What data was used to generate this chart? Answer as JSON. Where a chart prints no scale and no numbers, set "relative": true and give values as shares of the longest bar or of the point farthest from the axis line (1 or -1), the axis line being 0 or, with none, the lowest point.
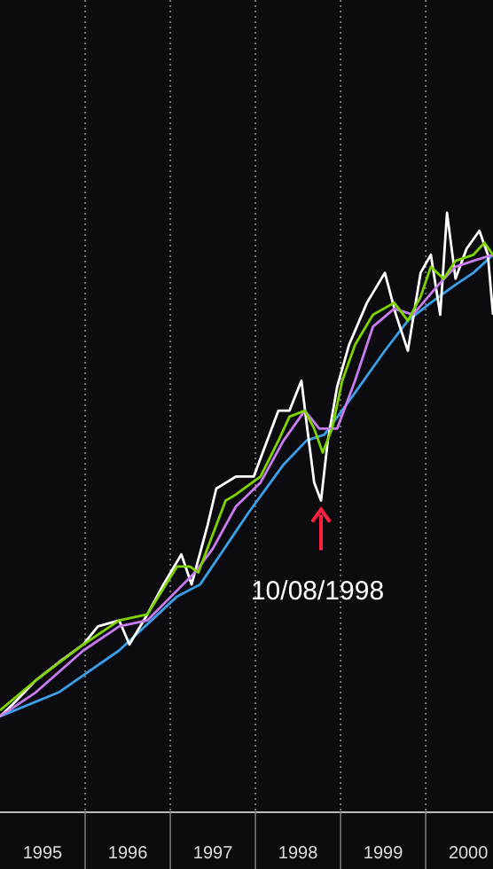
{
  "chart_data": {
    "type": "line",
    "relative": true,
    "xlim": [
      1995,
      2000.79
    ],
    "xticks": [
      {
        "value": 1995.5,
        "label": "1995"
      },
      {
        "value": 1996,
        "label": null
      },
      {
        "value": 1996.5,
        "label": "1996"
      },
      {
        "value": 1997,
        "label": null
      },
      {
        "value": 1997.5,
        "label": "1997"
      },
      {
        "value": 1998,
        "label": null
      },
      {
        "value": 1998.5,
        "label": "1998"
      },
      {
        "value": 1999,
        "label": null
      },
      {
        "value": 1999.5,
        "label": "1999"
      },
      {
        "value": 2000,
        "label": null
      },
      {
        "value": 2000.5,
        "label": "2000"
      }
    ],
    "grid": "x",
    "marker": "none",
    "line_style": "solid",
    "annotations": [
      {
        "text": "10/08/1998",
        "x": 1998.77,
        "y": 0.52
      }
    ],
    "series": [
      {
        "color": "#3ba0e8",
        "x": [
          1995,
          1995.69,
          1996.4,
          1997.08,
          1997.35,
          1997.92,
          1998.33,
          1998.6,
          1998.81,
          1999.17,
          1999.52,
          1999.79,
          2000.06,
          2000.35,
          2000.56,
          2000.79
        ],
        "values": [
          0.16,
          0.2,
          0.27,
          0.36,
          0.38,
          0.5,
          0.58,
          0.62,
          0.63,
          0.7,
          0.77,
          0.82,
          0.85,
          0.88,
          0.9,
          0.93
        ]
      },
      {
        "color": "#ffffff",
        "x": [
          1995,
          1995.15,
          1995.42,
          1995.69,
          1995.98,
          1996.15,
          1996.4,
          1996.52,
          1996.73,
          1996.92,
          1997.13,
          1997.25,
          1997.44,
          1997.54,
          1997.77,
          1997.98,
          1998.27,
          1998.4,
          1998.54,
          1998.6,
          1998.69,
          1998.77,
          1998.85,
          1998.96,
          1999.1,
          1999.31,
          1999.52,
          1999.65,
          1999.79,
          1999.94,
          2000.06,
          2000.17,
          2000.25,
          2000.35,
          2000.48,
          2000.63,
          2000.73,
          2000.79
        ],
        "values": [
          0.16,
          0.18,
          0.22,
          0.25,
          0.28,
          0.31,
          0.32,
          0.28,
          0.33,
          0.38,
          0.43,
          0.38,
          0.48,
          0.54,
          0.56,
          0.56,
          0.67,
          0.67,
          0.72,
          0.65,
          0.55,
          0.52,
          0.62,
          0.71,
          0.78,
          0.85,
          0.9,
          0.83,
          0.77,
          0.9,
          0.93,
          0.83,
          1,
          0.89,
          0.94,
          0.97,
          0.93,
          0.83
        ]
      },
      {
        "color": "#c97cf0",
        "x": [
          1995,
          1995.42,
          1995.98,
          1996.4,
          1996.73,
          1997.08,
          1997.29,
          1997.5,
          1997.77,
          1998.06,
          1998.33,
          1998.58,
          1998.75,
          1998.96,
          1999.17,
          1999.38,
          1999.63,
          1999.85,
          2000.15,
          2000.35,
          2000.56,
          2000.79
        ],
        "values": [
          0.16,
          0.2,
          0.27,
          0.31,
          0.32,
          0.37,
          0.4,
          0.44,
          0.51,
          0.55,
          0.62,
          0.67,
          0.64,
          0.64,
          0.72,
          0.81,
          0.84,
          0.83,
          0.88,
          0.91,
          0.92,
          0.93
        ]
      },
      {
        "color": "#7fd400",
        "x": [
          1995,
          1995.42,
          1995.98,
          1996.4,
          1996.73,
          1997.08,
          1997.23,
          1997.33,
          1997.65,
          1997.77,
          1998.06,
          1998.27,
          1998.4,
          1998.58,
          1998.69,
          1998.79,
          1998.9,
          1999.02,
          1999.17,
          1999.38,
          1999.63,
          1999.79,
          1999.94,
          2000.06,
          2000.21,
          2000.35,
          2000.56,
          2000.69,
          2000.79
        ],
        "values": [
          0.17,
          0.22,
          0.28,
          0.32,
          0.33,
          0.41,
          0.41,
          0.4,
          0.52,
          0.53,
          0.56,
          0.62,
          0.66,
          0.67,
          0.64,
          0.6,
          0.64,
          0.72,
          0.78,
          0.83,
          0.85,
          0.82,
          0.86,
          0.91,
          0.89,
          0.92,
          0.93,
          0.95,
          0.93
        ]
      }
    ]
  }
}
